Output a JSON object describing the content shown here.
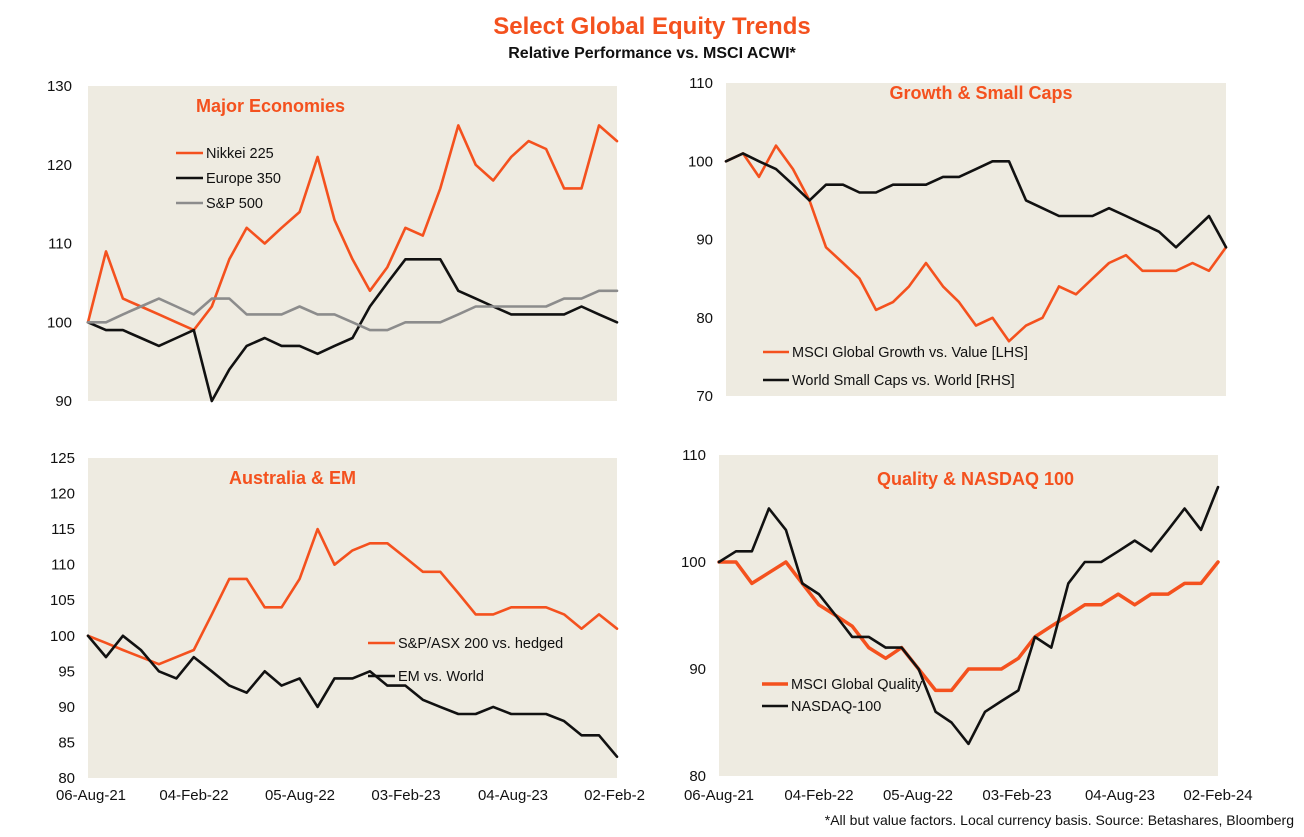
{
  "title": "Select Global Equity Trends",
  "subtitle": "Relative Performance vs. MSCI ACWI*",
  "footnote": "*All but value factors. Local currency basis.  Source: Betashares, Bloomberg",
  "colors": {
    "orange": "#F4511E",
    "black": "#111111",
    "grey": "#8C8C8C",
    "plot_bg": "#EEEBE1"
  },
  "chart_data": [
    {
      "type": "line",
      "title": "Major Economies",
      "ylim": [
        90,
        130
      ],
      "yticks": [
        "90",
        "100",
        "110",
        "120",
        "130"
      ],
      "xticks": [],
      "legend_position": "top-left",
      "series": [
        {
          "name": "Nikkei 225",
          "color": "#F4511E",
          "x": [
            "2021-08-06",
            "2021-09-06",
            "2021-10-05",
            "2021-11-05",
            "2021-12-06",
            "2022-01-05",
            "2022-02-04",
            "2022-03-07",
            "2022-04-06",
            "2022-05-06",
            "2022-06-06",
            "2022-07-05",
            "2022-08-05",
            "2022-09-05",
            "2022-10-04",
            "2022-11-04",
            "2022-12-04",
            "2023-01-03",
            "2023-02-03",
            "2023-03-05",
            "2023-04-04",
            "2023-05-05",
            "2023-06-04",
            "2023-07-04",
            "2023-08-04",
            "2023-09-03",
            "2023-10-03",
            "2023-11-03",
            "2023-12-03",
            "2024-01-02",
            "2024-02-02"
          ],
          "values": [
            100,
            109,
            103,
            102,
            101,
            100,
            99,
            102,
            108,
            112,
            110,
            112,
            114,
            121,
            113,
            108,
            104,
            107,
            112,
            111,
            117,
            125,
            120,
            118,
            121,
            123,
            122,
            117,
            117,
            125,
            123
          ]
        },
        {
          "name": "Europe 350",
          "color": "#111111",
          "x": [
            "2021-08-06",
            "2021-09-06",
            "2021-10-05",
            "2021-11-05",
            "2021-12-06",
            "2022-01-05",
            "2022-02-04",
            "2022-03-07",
            "2022-04-06",
            "2022-05-06",
            "2022-06-06",
            "2022-07-05",
            "2022-08-05",
            "2022-09-05",
            "2022-10-04",
            "2022-11-04",
            "2022-12-04",
            "2023-01-03",
            "2023-02-03",
            "2023-03-05",
            "2023-04-04",
            "2023-05-05",
            "2023-06-04",
            "2023-07-04",
            "2023-08-04",
            "2023-09-03",
            "2023-10-03",
            "2023-11-03",
            "2023-12-03",
            "2024-01-02",
            "2024-02-02"
          ],
          "values": [
            100,
            99,
            99,
            98,
            97,
            98,
            99,
            90,
            94,
            97,
            98,
            97,
            97,
            96,
            97,
            98,
            102,
            105,
            108,
            108,
            108,
            104,
            103,
            102,
            101,
            101,
            101,
            101,
            102,
            101,
            100
          ]
        },
        {
          "name": "S&P 500",
          "color": "#8C8C8C",
          "x": [
            "2021-08-06",
            "2021-09-06",
            "2021-10-05",
            "2021-11-05",
            "2021-12-06",
            "2022-01-05",
            "2022-02-04",
            "2022-03-07",
            "2022-04-06",
            "2022-05-06",
            "2022-06-06",
            "2022-07-05",
            "2022-08-05",
            "2022-09-05",
            "2022-10-04",
            "2022-11-04",
            "2022-12-04",
            "2023-01-03",
            "2023-02-03",
            "2023-03-05",
            "2023-04-04",
            "2023-05-05",
            "2023-06-04",
            "2023-07-04",
            "2023-08-04",
            "2023-09-03",
            "2023-10-03",
            "2023-11-03",
            "2023-12-03",
            "2024-01-02",
            "2024-02-02"
          ],
          "values": [
            100,
            100,
            101,
            102,
            103,
            102,
            101,
            103,
            103,
            101,
            101,
            101,
            102,
            101,
            101,
            100,
            99,
            99,
            100,
            100,
            100,
            101,
            102,
            102,
            102,
            102,
            102,
            103,
            103,
            104,
            104
          ]
        }
      ]
    },
    {
      "type": "line",
      "title": "Growth & Small Caps",
      "ylim": [
        70,
        110
      ],
      "yticks": [
        "70",
        "80",
        "90",
        "100",
        "110"
      ],
      "xticks": [],
      "legend_position": "bottom-left",
      "series": [
        {
          "name": "MSCI Global Growth vs. Value [LHS]",
          "color": "#F4511E",
          "x": [
            "2021-08-06",
            "2021-09-06",
            "2021-10-05",
            "2021-11-05",
            "2021-12-06",
            "2022-01-05",
            "2022-02-04",
            "2022-03-07",
            "2022-04-06",
            "2022-05-06",
            "2022-06-06",
            "2022-07-05",
            "2022-08-05",
            "2022-09-05",
            "2022-10-04",
            "2022-11-04",
            "2022-12-04",
            "2023-01-03",
            "2023-02-03",
            "2023-03-05",
            "2023-04-04",
            "2023-05-05",
            "2023-06-04",
            "2023-07-04",
            "2023-08-04",
            "2023-09-03",
            "2023-10-03",
            "2023-11-03",
            "2023-12-03",
            "2024-01-02",
            "2024-02-02"
          ],
          "values": [
            100,
            101,
            98,
            102,
            99,
            95,
            89,
            87,
            85,
            81,
            82,
            84,
            87,
            84,
            82,
            79,
            80,
            77,
            79,
            80,
            84,
            83,
            85,
            87,
            88,
            86,
            86,
            86,
            87,
            86,
            89
          ]
        },
        {
          "name": "World Small Caps vs. World [RHS]",
          "color": "#111111",
          "x": [
            "2021-08-06",
            "2021-09-06",
            "2021-10-05",
            "2021-11-05",
            "2021-12-06",
            "2022-01-05",
            "2022-02-04",
            "2022-03-07",
            "2022-04-06",
            "2022-05-06",
            "2022-06-06",
            "2022-07-05",
            "2022-08-05",
            "2022-09-05",
            "2022-10-04",
            "2022-11-04",
            "2022-12-04",
            "2023-01-03",
            "2023-02-03",
            "2023-03-05",
            "2023-04-04",
            "2023-05-05",
            "2023-06-04",
            "2023-07-04",
            "2023-08-04",
            "2023-09-03",
            "2023-10-03",
            "2023-11-03",
            "2023-12-03",
            "2024-01-02",
            "2024-02-02"
          ],
          "values": [
            100,
            101,
            100,
            99,
            97,
            95,
            97,
            97,
            96,
            96,
            97,
            97,
            97,
            98,
            98,
            99,
            100,
            100,
            95,
            94,
            93,
            93,
            93,
            94,
            93,
            92,
            91,
            89,
            91,
            93,
            89
          ]
        }
      ]
    },
    {
      "type": "line",
      "title": "Australia & EM",
      "ylim": [
        80,
        125
      ],
      "yticks": [
        "80",
        "85",
        "90",
        "95",
        "100",
        "105",
        "110",
        "115",
        "120",
        "125"
      ],
      "xticks": [
        "06-Aug-21",
        "04-Feb-22",
        "05-Aug-22",
        "03-Feb-23",
        "04-Aug-23",
        "02-Feb-2"
      ],
      "legend_position": "center-right",
      "series": [
        {
          "name": "S&P/ASX 200 vs. hedged",
          "color": "#F4511E",
          "x": [
            "2021-08-06",
            "2021-09-06",
            "2021-10-05",
            "2021-11-05",
            "2021-12-06",
            "2022-01-05",
            "2022-02-04",
            "2022-03-07",
            "2022-04-06",
            "2022-05-06",
            "2022-06-06",
            "2022-07-05",
            "2022-08-05",
            "2022-09-05",
            "2022-10-04",
            "2022-11-04",
            "2022-12-04",
            "2023-01-03",
            "2023-02-03",
            "2023-03-05",
            "2023-04-04",
            "2023-05-05",
            "2023-06-04",
            "2023-07-04",
            "2023-08-04",
            "2023-09-03",
            "2023-10-03",
            "2023-11-03",
            "2023-12-03",
            "2024-01-02",
            "2024-02-02"
          ],
          "values": [
            100,
            99,
            98,
            97,
            96,
            97,
            98,
            103,
            108,
            108,
            104,
            104,
            108,
            115,
            110,
            112,
            113,
            113,
            111,
            109,
            109,
            106,
            103,
            103,
            104,
            104,
            104,
            103,
            101,
            103,
            101
          ]
        },
        {
          "name": "EM vs. World",
          "color": "#111111",
          "x": [
            "2021-08-06",
            "2021-09-06",
            "2021-10-05",
            "2021-11-05",
            "2021-12-06",
            "2022-01-05",
            "2022-02-04",
            "2022-03-07",
            "2022-04-06",
            "2022-05-06",
            "2022-06-06",
            "2022-07-05",
            "2022-08-05",
            "2022-09-05",
            "2022-10-04",
            "2022-11-04",
            "2022-12-04",
            "2023-01-03",
            "2023-02-03",
            "2023-03-05",
            "2023-04-04",
            "2023-05-05",
            "2023-06-04",
            "2023-07-04",
            "2023-08-04",
            "2023-09-03",
            "2023-10-03",
            "2023-11-03",
            "2023-12-03",
            "2024-01-02",
            "2024-02-02"
          ],
          "values": [
            100,
            97,
            100,
            98,
            95,
            94,
            97,
            95,
            93,
            92,
            95,
            93,
            94,
            90,
            94,
            94,
            95,
            93,
            93,
            91,
            90,
            89,
            89,
            90,
            89,
            89,
            89,
            88,
            86,
            86,
            83
          ]
        }
      ]
    },
    {
      "type": "line",
      "title": "Quality & NASDAQ 100",
      "ylim": [
        80,
        110
      ],
      "yticks": [
        "80",
        "90",
        "100",
        "110"
      ],
      "xticks": [
        "06-Aug-21",
        "04-Feb-22",
        "05-Aug-22",
        "03-Feb-23",
        "04-Aug-23",
        "02-Feb-24"
      ],
      "legend_position": "bottom-left",
      "series": [
        {
          "name": "MSCI Global Quality",
          "color": "#F4511E",
          "x": [
            "2021-08-06",
            "2021-09-06",
            "2021-10-05",
            "2021-11-05",
            "2021-12-06",
            "2022-01-05",
            "2022-02-04",
            "2022-03-07",
            "2022-04-06",
            "2022-05-06",
            "2022-06-06",
            "2022-07-05",
            "2022-08-05",
            "2022-09-05",
            "2022-10-04",
            "2022-11-04",
            "2022-12-04",
            "2023-01-03",
            "2023-02-03",
            "2023-03-05",
            "2023-04-04",
            "2023-05-05",
            "2023-06-04",
            "2023-07-04",
            "2023-08-04",
            "2023-09-03",
            "2023-10-03",
            "2023-11-03",
            "2023-12-03",
            "2024-01-02",
            "2024-02-02"
          ],
          "values": [
            100,
            100,
            98,
            99,
            100,
            98,
            96,
            95,
            94,
            92,
            91,
            92,
            90,
            88,
            88,
            90,
            90,
            90,
            91,
            93,
            94,
            95,
            96,
            96,
            97,
            96,
            97,
            97,
            98,
            98,
            100
          ]
        },
        {
          "name": "NASDAQ-100",
          "color": "#111111",
          "x": [
            "2021-08-06",
            "2021-09-06",
            "2021-10-05",
            "2021-11-05",
            "2021-12-06",
            "2022-01-05",
            "2022-02-04",
            "2022-03-07",
            "2022-04-06",
            "2022-05-06",
            "2022-06-06",
            "2022-07-05",
            "2022-08-05",
            "2022-09-05",
            "2022-10-04",
            "2022-11-04",
            "2022-12-04",
            "2023-01-03",
            "2023-02-03",
            "2023-03-05",
            "2023-04-04",
            "2023-05-05",
            "2023-06-04",
            "2023-07-04",
            "2023-08-04",
            "2023-09-03",
            "2023-10-03",
            "2023-11-03",
            "2023-12-03",
            "2024-01-02",
            "2024-02-02"
          ],
          "values": [
            100,
            101,
            101,
            105,
            103,
            98,
            97,
            95,
            93,
            93,
            92,
            92,
            90,
            86,
            85,
            83,
            86,
            87,
            88,
            93,
            92,
            98,
            100,
            100,
            101,
            102,
            101,
            103,
            105,
            103,
            107
          ]
        }
      ]
    }
  ]
}
